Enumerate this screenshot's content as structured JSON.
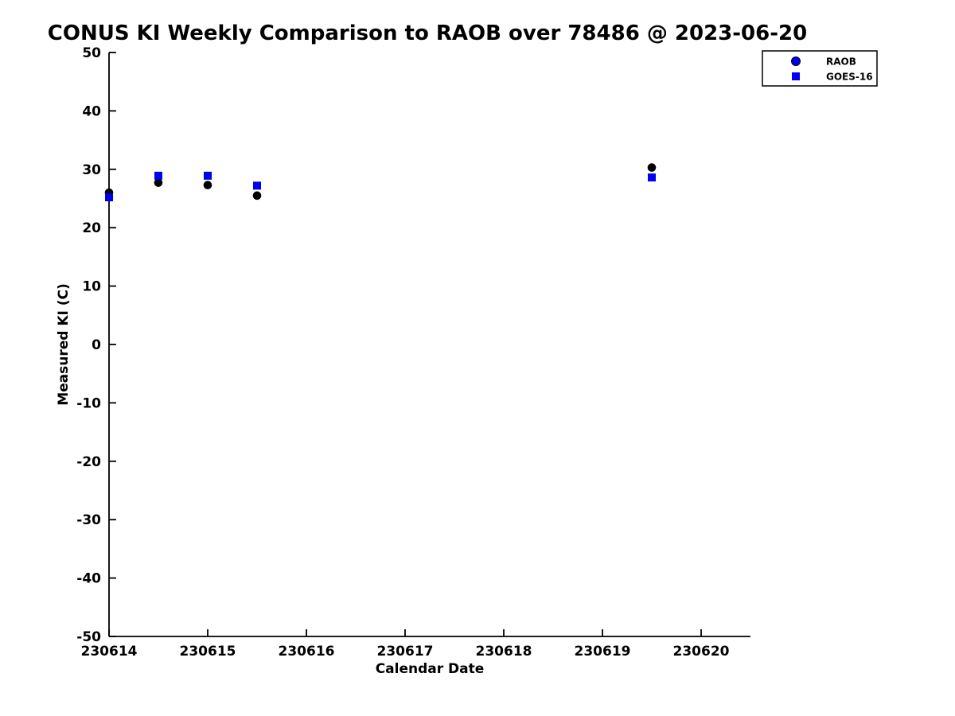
{
  "title": "CONUS KI Weekly Comparison to RAOB over 78486 @ 2023-06-20",
  "colors": {
    "series_blue": "#0000EE",
    "series_black": "#000000",
    "axis": "#000000",
    "background": "#FFFFFF"
  },
  "legend": {
    "entries": [
      {
        "label": "RAOB",
        "marker": "circle",
        "color": "#0000EE"
      },
      {
        "label": "GOES-16",
        "marker": "square",
        "color": "#0000EE"
      }
    ],
    "position": "top-right"
  },
  "chart_data": {
    "type": "scatter",
    "title": "CONUS KI Weekly Comparison to RAOB over 78486 @ 2023-06-20",
    "xlabel": "Calendar Date",
    "ylabel": "Measured KI (C)",
    "xlim": [
      230614,
      230620.5
    ],
    "ylim": [
      -50,
      50
    ],
    "x_ticks": [
      230614,
      230615,
      230616,
      230617,
      230618,
      230619,
      230620
    ],
    "y_ticks": [
      -50,
      -40,
      -30,
      -20,
      -10,
      0,
      10,
      20,
      30,
      40,
      50
    ],
    "grid": false,
    "legend_position": "upper right outside plot",
    "series": [
      {
        "name": "RAOB",
        "marker": "circle",
        "plot_color": "#000000",
        "legend_color": "#0000EE",
        "x": [
          230614,
          230614.5,
          230615,
          230615.5,
          230619.5
        ],
        "y": [
          26.0,
          27.7,
          27.3,
          25.5,
          30.3
        ]
      },
      {
        "name": "GOES-16",
        "marker": "square",
        "plot_color": "#0000EE",
        "legend_color": "#0000EE",
        "x": [
          230614,
          230614.5,
          230615,
          230615.5,
          230619.5
        ],
        "y": [
          25.2,
          28.9,
          28.9,
          27.2,
          28.6
        ]
      }
    ]
  }
}
